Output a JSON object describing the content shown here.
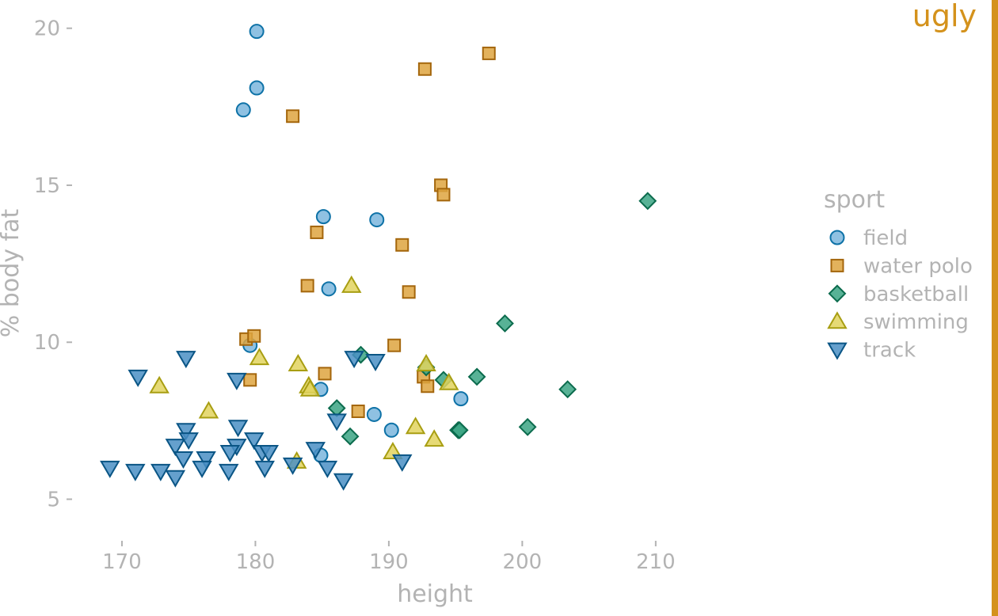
{
  "tag": {
    "text": "ugly",
    "color": "#D4921C"
  },
  "chart_data": {
    "type": "scatter",
    "xlabel": "height",
    "ylabel": "% body fat",
    "xlim": [
      166.5,
      222
    ],
    "ylim": [
      3.5,
      20.9
    ],
    "xticks": [
      170,
      180,
      190,
      200,
      210
    ],
    "yticks": [
      5,
      10,
      15,
      20
    ],
    "grid": false,
    "legend_title": "sport",
    "legend_position": "right",
    "series": [
      {
        "name": "field",
        "marker": "circle",
        "fill": "#7BB6DD",
        "stroke": "#0E72A7",
        "points": [
          [
            180.1,
            19.9
          ],
          [
            180.1,
            18.1
          ],
          [
            179.1,
            17.4
          ],
          [
            185.1,
            14.0
          ],
          [
            189.1,
            13.9
          ],
          [
            185.5,
            11.7
          ],
          [
            179.6,
            9.9
          ],
          [
            184.9,
            8.5
          ],
          [
            195.4,
            8.2
          ],
          [
            188.9,
            7.7
          ],
          [
            190.2,
            7.2
          ],
          [
            184.9,
            6.4
          ]
        ]
      },
      {
        "name": "water polo",
        "marker": "square",
        "fill": "#DEA43F",
        "stroke": "#A4660C",
        "points": [
          [
            197.5,
            19.2
          ],
          [
            192.7,
            18.7
          ],
          [
            182.8,
            17.2
          ],
          [
            193.9,
            15.0
          ],
          [
            194.1,
            14.7
          ],
          [
            184.6,
            13.5
          ],
          [
            191.0,
            13.1
          ],
          [
            183.9,
            11.8
          ],
          [
            191.5,
            11.6
          ],
          [
            179.3,
            10.1
          ],
          [
            179.9,
            10.2
          ],
          [
            190.4,
            9.9
          ],
          [
            185.2,
            9.0
          ],
          [
            179.6,
            8.8
          ],
          [
            192.6,
            8.9
          ],
          [
            192.9,
            8.6
          ],
          [
            187.7,
            7.8
          ]
        ]
      },
      {
        "name": "basketball",
        "marker": "diamond",
        "fill": "#3BA584",
        "stroke": "#0B6B4D",
        "points": [
          [
            209.4,
            14.5
          ],
          [
            198.7,
            10.6
          ],
          [
            187.9,
            9.6
          ],
          [
            192.8,
            9.2
          ],
          [
            194.1,
            8.8
          ],
          [
            196.6,
            8.9
          ],
          [
            203.4,
            8.5
          ],
          [
            186.1,
            7.9
          ],
          [
            187.1,
            7.0
          ],
          [
            195.2,
            7.2
          ],
          [
            195.3,
            7.2
          ],
          [
            200.4,
            7.3
          ]
        ]
      },
      {
        "name": "swimming",
        "marker": "triangle-up",
        "fill": "#E2D35E",
        "stroke": "#A89E12",
        "points": [
          [
            187.2,
            11.8
          ],
          [
            180.3,
            9.5
          ],
          [
            172.8,
            8.6
          ],
          [
            176.5,
            7.8
          ],
          [
            183.2,
            9.3
          ],
          [
            184.0,
            8.6
          ],
          [
            184.1,
            8.5
          ],
          [
            192.8,
            9.3
          ],
          [
            194.5,
            8.7
          ],
          [
            192.0,
            7.3
          ],
          [
            193.4,
            6.9
          ],
          [
            190.3,
            6.5
          ],
          [
            183.1,
            6.2
          ]
        ]
      },
      {
        "name": "track",
        "marker": "triangle-down",
        "fill": "#4A8FC4",
        "stroke": "#0A5585",
        "points": [
          [
            171.2,
            8.9
          ],
          [
            174.8,
            9.5
          ],
          [
            178.6,
            8.8
          ],
          [
            187.4,
            9.5
          ],
          [
            189.0,
            9.4
          ],
          [
            186.1,
            7.5
          ],
          [
            178.7,
            7.3
          ],
          [
            174.8,
            7.2
          ],
          [
            175.0,
            6.9
          ],
          [
            174.0,
            6.7
          ],
          [
            178.6,
            6.7
          ],
          [
            179.9,
            6.9
          ],
          [
            178.1,
            6.5
          ],
          [
            180.5,
            6.5
          ],
          [
            181.0,
            6.5
          ],
          [
            174.6,
            6.3
          ],
          [
            176.3,
            6.3
          ],
          [
            184.5,
            6.6
          ],
          [
            169.1,
            6.0
          ],
          [
            171.0,
            5.9
          ],
          [
            172.9,
            5.9
          ],
          [
            174.0,
            5.7
          ],
          [
            176.0,
            6.0
          ],
          [
            178.0,
            5.9
          ],
          [
            180.7,
            6.0
          ],
          [
            182.8,
            6.1
          ],
          [
            185.4,
            6.0
          ],
          [
            186.6,
            5.6
          ],
          [
            191.0,
            6.2
          ]
        ]
      }
    ]
  }
}
